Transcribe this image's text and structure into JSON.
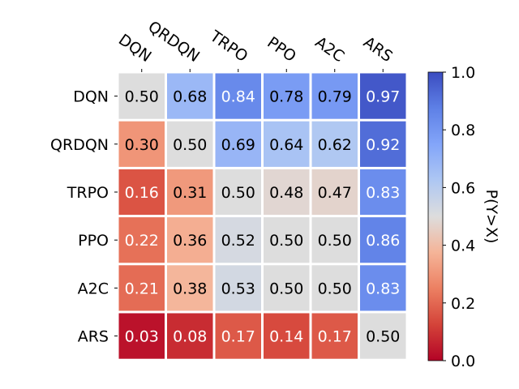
{
  "chart_data": {
    "type": "heatmap",
    "rows": [
      "DQN",
      "QRDQN",
      "TRPO",
      "PPO",
      "A2C",
      "ARS"
    ],
    "columns": [
      "DQN",
      "QRDQN",
      "TRPO",
      "PPO",
      "A2C",
      "ARS"
    ],
    "values": [
      [
        0.5,
        0.68,
        0.84,
        0.78,
        0.79,
        0.97
      ],
      [
        0.3,
        0.5,
        0.69,
        0.64,
        0.62,
        0.92
      ],
      [
        0.16,
        0.31,
        0.5,
        0.48,
        0.47,
        0.83
      ],
      [
        0.22,
        0.36,
        0.52,
        0.5,
        0.5,
        0.86
      ],
      [
        0.21,
        0.38,
        0.53,
        0.5,
        0.5,
        0.83
      ],
      [
        0.03,
        0.08,
        0.17,
        0.14,
        0.17,
        0.5
      ]
    ],
    "value_labels": [
      [
        "0.50",
        "0.68",
        "0.84",
        "0.78",
        "0.79",
        "0.97"
      ],
      [
        "0.30",
        "0.50",
        "0.69",
        "0.64",
        "0.62",
        "0.92"
      ],
      [
        "0.16",
        "0.31",
        "0.50",
        "0.48",
        "0.47",
        "0.83"
      ],
      [
        "0.22",
        "0.36",
        "0.52",
        "0.50",
        "0.50",
        "0.86"
      ],
      [
        "0.21",
        "0.38",
        "0.53",
        "0.50",
        "0.50",
        "0.83"
      ],
      [
        "0.03",
        "0.08",
        "0.17",
        "0.14",
        "0.17",
        "0.50"
      ]
    ],
    "colormap": "coolwarm",
    "vmin": 0.0,
    "vmax": 1.0,
    "colorbar": {
      "label": "P(Y>X)",
      "ticks": [
        0.0,
        0.2,
        0.4,
        0.6,
        0.8,
        1.0
      ],
      "tick_labels": [
        "0.0",
        "0.2",
        "0.4",
        "0.6",
        "0.8",
        "1.0"
      ]
    },
    "title": "",
    "xlabel": "",
    "ylabel": ""
  }
}
